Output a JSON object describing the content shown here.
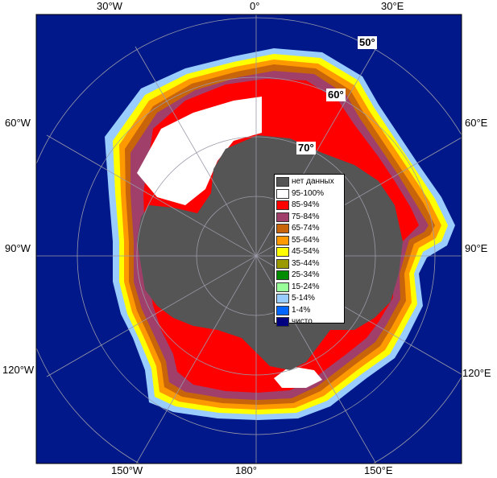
{
  "longitude_labels": {
    "top": [
      "30°W",
      "0°",
      "30°E"
    ],
    "bottom": [
      "150°W",
      "180°",
      "150°E"
    ],
    "left": [
      "60°W",
      "90°W",
      "120°W"
    ],
    "right": [
      "60°E",
      "90°E",
      "120°E"
    ]
  },
  "latitude_labels": [
    "50°",
    "60°",
    "70°"
  ],
  "legend": {
    "items": [
      {
        "label": "нет данных",
        "color": "#555555"
      },
      {
        "label": "95-100%",
        "color": "#ffffff"
      },
      {
        "label": "85-94%",
        "color": "#ff0000"
      },
      {
        "label": "75-84%",
        "color": "#a0406a"
      },
      {
        "label": "65-74%",
        "color": "#c8640a"
      },
      {
        "label": "55-64%",
        "color": "#ff9900"
      },
      {
        "label": "45-54%",
        "color": "#ffff00"
      },
      {
        "label": "35-44%",
        "color": "#9a9a00"
      },
      {
        "label": "25-34%",
        "color": "#008c00"
      },
      {
        "label": "15-24%",
        "color": "#99ff99"
      },
      {
        "label": "5-14%",
        "color": "#99ccff"
      },
      {
        "label": "1-4%",
        "color": "#0066ff"
      },
      {
        "label": "чисто",
        "color": "#000080"
      }
    ]
  },
  "colors": {
    "ocean": "#00188a",
    "land": "#555555",
    "grid": "#9a9aa8"
  }
}
